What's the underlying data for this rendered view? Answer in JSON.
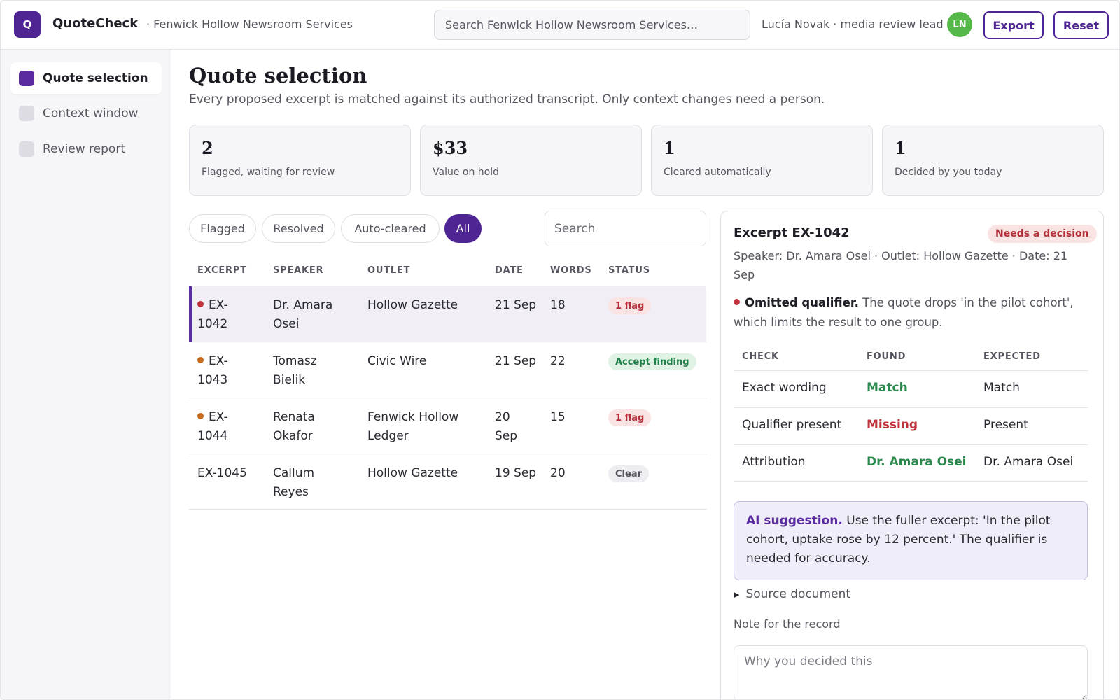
{
  "app": {
    "logo_letter": "Q",
    "name": "QuoteCheck",
    "org": "· Fenwick Hollow Newsroom Services",
    "search_placeholder": "Search Fenwick Hollow Newsroom Services…",
    "user": "Lucía Novak · media review lead",
    "avatar_initials": "LN",
    "export_label": "Export",
    "reset_label": "Reset",
    "accent_color": "#4f2594"
  },
  "sidebar": {
    "items": [
      {
        "label": "Quote selection",
        "active": true
      },
      {
        "label": "Context window",
        "active": false
      },
      {
        "label": "Review report",
        "active": false
      }
    ]
  },
  "main": {
    "title": "Quote selection",
    "subtitle": "Every proposed excerpt is matched against its authorized transcript. Only context changes need a person.",
    "stats": [
      {
        "value": "2",
        "label": "Flagged, waiting for review"
      },
      {
        "value": "$33",
        "label": "Value on hold"
      },
      {
        "value": "1",
        "label": "Cleared automatically"
      },
      {
        "value": "1",
        "label": "Decided by you today"
      }
    ],
    "filters": [
      "Flagged",
      "Resolved",
      "Auto-cleared",
      "All"
    ],
    "active_filter": "All",
    "search_placeholder": "Search"
  },
  "table": {
    "columns": [
      "EXCERPT",
      "SPEAKER",
      "OUTLET",
      "DATE",
      "WORDS",
      "STATUS"
    ],
    "rows": [
      {
        "id_a": "EX-",
        "id_b": "1042",
        "speaker_a": "Dr. Amara",
        "speaker_b": "Osei",
        "outlet_a": "Hollow Gazette",
        "outlet_b": "",
        "date_a": "21 Sep",
        "date_b": "",
        "words": "18",
        "status": "1 flag",
        "status_type": "flag",
        "dot_color": "#c0313b"
      },
      {
        "id_a": "EX-",
        "id_b": "1043",
        "speaker_a": "Tomasz",
        "speaker_b": "Bielik",
        "outlet_a": "Civic Wire",
        "outlet_b": "",
        "date_a": "21 Sep",
        "date_b": "",
        "words": "22",
        "status": "Accept finding",
        "status_type": "accept",
        "dot_color": "#c66a1e"
      },
      {
        "id_a": "EX-",
        "id_b": "1044",
        "speaker_a": "Renata",
        "speaker_b": "Okafor",
        "outlet_a": "Fenwick Hollow",
        "outlet_b": "Ledger",
        "date_a": "20",
        "date_b": "Sep",
        "words": "15",
        "status": "1 flag",
        "status_type": "flag",
        "dot_color": "#c66a1e"
      },
      {
        "id_a": "EX-1045",
        "id_b": "",
        "speaker_a": "Callum",
        "speaker_b": "Reyes",
        "outlet_a": "Hollow Gazette",
        "outlet_b": "",
        "date_a": "19 Sep",
        "date_b": "",
        "words": "20",
        "status": "Clear",
        "status_type": "clear",
        "dot_color": ""
      }
    ]
  },
  "detail": {
    "title": "Excerpt EX-1042",
    "badge": "Needs a decision",
    "meta": "Speaker: Dr. Amara Osei · Outlet: Hollow Gazette · Date: 21 Sep",
    "issue_title": "Omitted qualifier.",
    "issue_text": "The quote drops 'in the pilot cohort', which limits the result to one group.",
    "checks_columns": [
      "CHECK",
      "FOUND",
      "EXPECTED"
    ],
    "checks": [
      {
        "check": "Exact wording",
        "found": "Match",
        "expected": "Match",
        "ok": true
      },
      {
        "check": "Qualifier present",
        "found": "Missing",
        "expected": "Present",
        "ok": false
      },
      {
        "check": "Attribution",
        "found": "Dr. Amara Osei",
        "expected": "Dr. Amara Osei",
        "ok": true
      }
    ],
    "ai_label": "AI suggestion.",
    "ai_text": "Use the fuller excerpt: 'In the pilot cohort, uptake rose by 12 percent.' The qualifier is needed for accuracy.",
    "source_label": "Source document",
    "note_label": "Note for the record",
    "note_placeholder": "Why you decided this"
  }
}
